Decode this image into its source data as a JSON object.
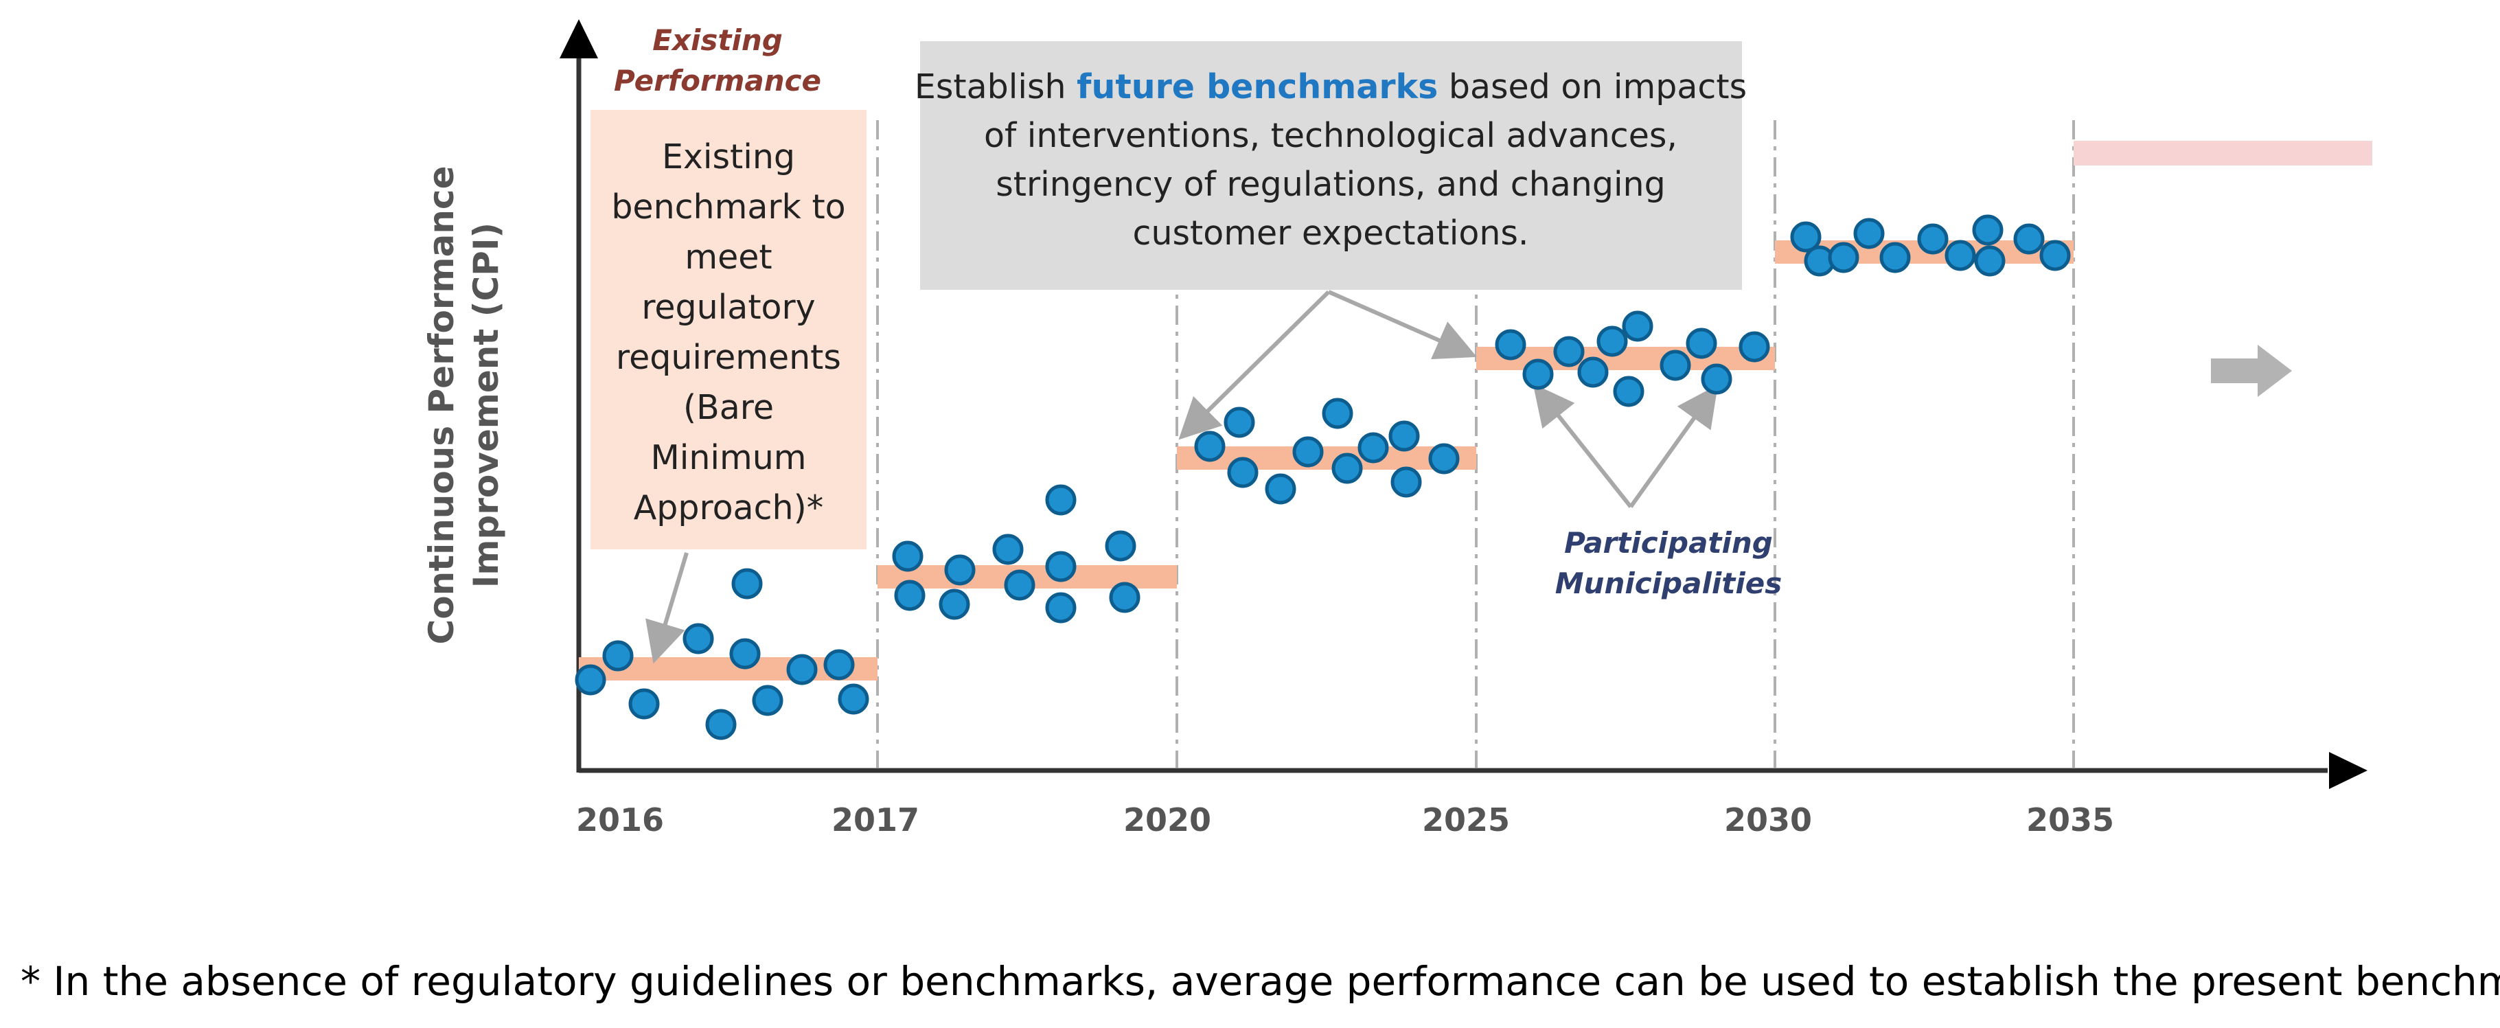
{
  "axes": {
    "y_label_line1": "Continuous Performance",
    "y_label_line2": "Improvement (CPI)",
    "x_ticks": [
      "2016",
      "2017",
      "2020",
      "2025",
      "2030",
      "2035"
    ]
  },
  "labels": {
    "existing_performance_line1": "Existing",
    "existing_performance_line2": "Performance",
    "participating_line1": "Participating",
    "participating_line2": "Municipalities"
  },
  "existing_box": {
    "lines": [
      "Existing",
      "benchmark to",
      "meet",
      "regulatory",
      "requirements",
      "(Bare",
      "Minimum",
      "Approach)*"
    ]
  },
  "future_box": {
    "line1_prefix": "Establish ",
    "line1_highlight": "future benchmarks",
    "line1_suffix": " based on impacts",
    "line2": "of interventions, technological advances,",
    "line3": "stringency of regulations, and changing",
    "line4": "customer expectations."
  },
  "footnote": "* In the absence of regulatory guidelines or benchmarks, average performance can be used to establish the present benchmark",
  "colors": {
    "benchmark_band": "#f7b899",
    "future_band": "#f7d3d3",
    "dot_fill": "#1e8fcf",
    "dot_stroke": "#0d5d8f",
    "existing_box_fill": "#fde3d6",
    "future_box_fill": "#dcdcdc",
    "highlight_text": "#1f78c1",
    "existing_label": "#8b3a2f",
    "participating_label": "#2f3f6f",
    "axis_label": "#555555"
  }
}
